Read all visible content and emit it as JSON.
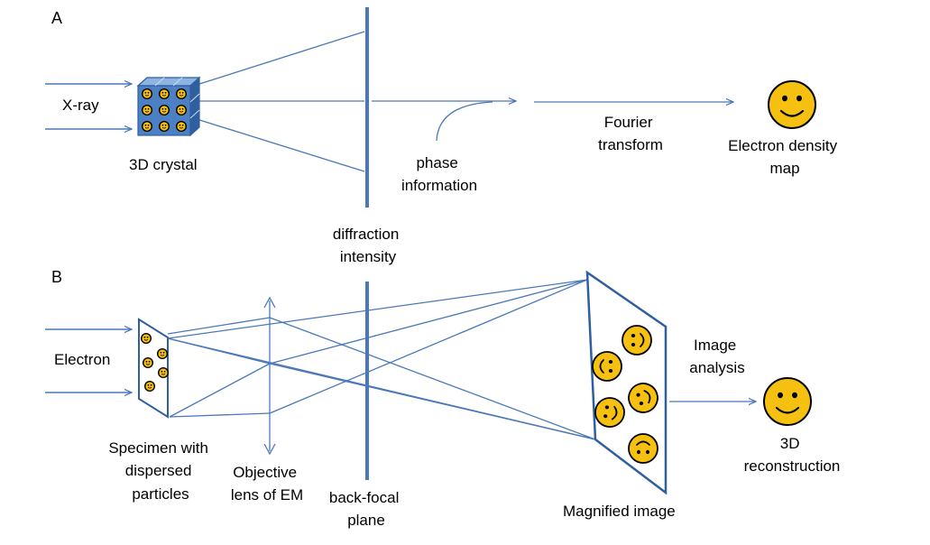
{
  "panel_a": {
    "letter": "A",
    "input_label": "X-ray",
    "crystal_label": "3D crystal",
    "diffraction_label": [
      "diffraction",
      "intensity"
    ],
    "phase_label": [
      "phase",
      "information"
    ],
    "fourier_label": [
      "Fourier",
      "transform"
    ],
    "result_label": [
      "Electron density",
      "map"
    ]
  },
  "panel_b": {
    "letter": "B",
    "input_label": "Electron",
    "specimen_label": [
      "Specimen with",
      "dispersed",
      "particles"
    ],
    "lens_label": [
      "Objective",
      "lens of EM"
    ],
    "backfocal_label": [
      "back-focal",
      "plane"
    ],
    "magnified_label": "Magnified image",
    "analysis_label": [
      "Image",
      "analysis"
    ],
    "result_label": [
      "3D",
      "reconstruction"
    ]
  },
  "colors": {
    "line": "#4a78b8",
    "crystal_front": "#4d7fc4",
    "crystal_top": "#8eb4e3",
    "crystal_side": "#2f5f9e",
    "face": "#f5c010",
    "face_stroke": "#000000"
  },
  "icons": [
    "smiley-face-icon",
    "arrow-icon"
  ]
}
